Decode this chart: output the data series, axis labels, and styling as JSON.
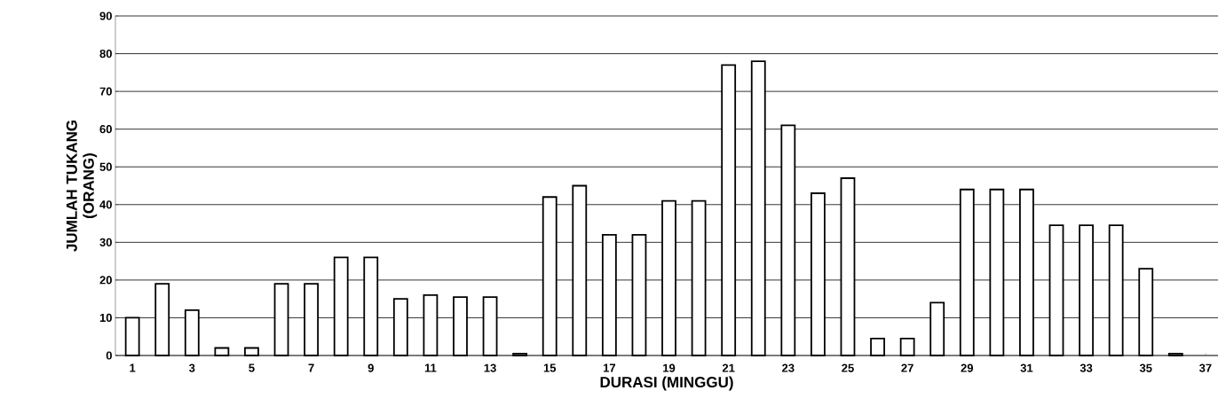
{
  "chart_data": {
    "type": "bar",
    "xlabel": "DURASI (MINGGU)",
    "ylabel": "JUMLAH TUKANG (ORANG)",
    "categories": [
      "1",
      null,
      "3",
      null,
      "5",
      null,
      "7",
      null,
      "9",
      null,
      "11",
      null,
      "13",
      null,
      "15",
      null,
      "17",
      null,
      "19",
      null,
      "21",
      null,
      "23",
      null,
      "25",
      null,
      "27",
      null,
      "29",
      null,
      "31",
      null,
      "33",
      null,
      "35",
      null,
      "37"
    ],
    "values": [
      10,
      19,
      12,
      2,
      2,
      19,
      19,
      26,
      26,
      15,
      16,
      15.5,
      15.5,
      0.5,
      42,
      45,
      32,
      32,
      41,
      41,
      77,
      78,
      61,
      43,
      47,
      4.5,
      4.5,
      14,
      44,
      44,
      44,
      34.5,
      34.5,
      34.5,
      23,
      0.5,
      null
    ],
    "color": "#ffffff",
    "ylim": [
      0,
      90
    ],
    "yticks": [
      0,
      10,
      20,
      30,
      40,
      50,
      60,
      70,
      80,
      90
    ],
    "grid": "y"
  }
}
